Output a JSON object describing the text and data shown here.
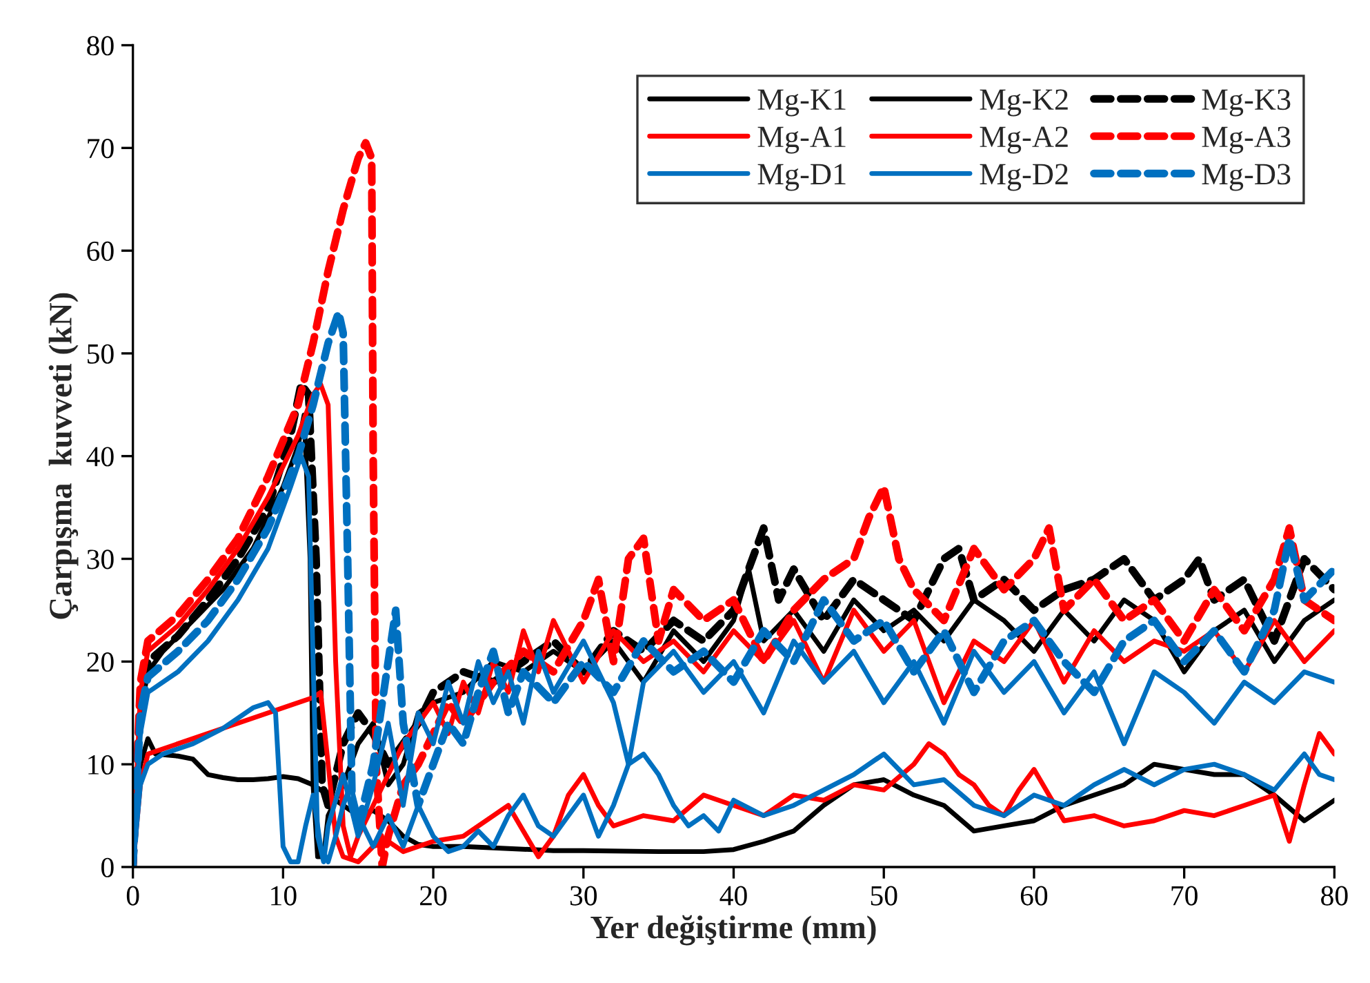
{
  "chart_data": {
    "type": "line",
    "xlabel": "Yer değiştirme (mm)",
    "ylabel": "Çarpışma  kuvveti (kN)",
    "xlim": [
      0,
      80
    ],
    "xticks": [
      0,
      10,
      20,
      30,
      40,
      50,
      60,
      70,
      80
    ],
    "ylim": [
      0,
      80
    ],
    "yticks": [
      0,
      10,
      20,
      30,
      40,
      50,
      60,
      70,
      80
    ],
    "grid": false,
    "legend": "top right",
    "series": [
      {
        "name": "Mg-K1",
        "color": "#000000",
        "line_style": "solid",
        "x": [
          0,
          0.5,
          1,
          1.5,
          3,
          4,
          5,
          6,
          7,
          8,
          9,
          10,
          11,
          12,
          13,
          14,
          15,
          16,
          17,
          18,
          19,
          20,
          22,
          25,
          28,
          30,
          35,
          38,
          40,
          42,
          44,
          46,
          48,
          50,
          52,
          54,
          56,
          58,
          60,
          62,
          64,
          66,
          68,
          70,
          72,
          74,
          76,
          78,
          80
        ],
        "values": [
          0,
          10,
          12.5,
          11,
          10.8,
          10.5,
          9,
          8.7,
          8.5,
          8.5,
          8.6,
          8.8,
          8.6,
          8,
          7,
          6,
          5,
          5.5,
          4.5,
          3,
          2.2,
          2,
          2,
          1.8,
          1.6,
          1.6,
          1.5,
          1.5,
          1.7,
          2.5,
          3.5,
          6,
          8,
          8.5,
          7,
          6,
          3.5,
          4,
          4.5,
          6,
          7,
          8,
          10,
          9.5,
          9,
          9,
          7,
          4.5,
          6.5
        ]
      },
      {
        "name": "Mg-K2",
        "color": "#000000",
        "line_style": "solid",
        "x": [
          0,
          0.5,
          1,
          2,
          4,
          6,
          8,
          10,
          11,
          11.4,
          11.8,
          12,
          12.3,
          12.7,
          13,
          14,
          15,
          16,
          17,
          18,
          19,
          20,
          22,
          24,
          26,
          28,
          30,
          32,
          34,
          36,
          38,
          40,
          41,
          42,
          44,
          46,
          48,
          50,
          52,
          54,
          56,
          58,
          60,
          62,
          64,
          66,
          68,
          70,
          72,
          74,
          76,
          78,
          80
        ],
        "values": [
          0,
          15,
          19,
          21,
          24,
          27,
          31,
          37,
          41,
          44,
          30,
          8,
          1,
          1,
          5,
          8,
          12,
          14,
          8,
          10,
          15,
          16,
          17,
          20,
          19,
          21,
          19,
          22,
          18,
          23,
          20,
          24,
          29,
          22,
          25,
          21,
          26,
          23,
          25,
          22,
          26,
          24,
          21,
          25,
          22,
          26,
          24,
          19,
          23,
          25,
          20,
          24,
          26
        ]
      },
      {
        "name": "Mg-K3",
        "color": "#000000",
        "line_style": "dashed",
        "x": [
          0,
          0.5,
          1,
          3,
          5,
          7,
          9,
          10.5,
          11.2,
          11.7,
          12.2,
          12.6,
          13,
          14,
          15,
          16,
          17,
          18,
          19,
          20,
          22,
          24,
          26,
          28,
          30,
          32,
          34,
          36,
          38,
          40,
          42,
          43,
          44,
          46,
          48,
          50,
          52,
          54,
          55,
          56,
          58,
          60,
          62,
          64,
          66,
          68,
          70,
          71,
          72,
          74,
          76,
          78,
          80
        ],
        "values": [
          0,
          16,
          20,
          22.5,
          26,
          30,
          35,
          42,
          47,
          46,
          30,
          8,
          6,
          12,
          15,
          13,
          10,
          12,
          14,
          17,
          19,
          18,
          20,
          22,
          19,
          23,
          21,
          24,
          22,
          25,
          33,
          26,
          29,
          24,
          28,
          26,
          24,
          30,
          31,
          26,
          28,
          25,
          27,
          28,
          30,
          26,
          28,
          30,
          26,
          28,
          22,
          30,
          27
        ]
      },
      {
        "name": "Mg-A1",
        "color": "#ff0000",
        "line_style": "solid",
        "x": [
          0,
          0.5,
          1,
          3,
          6,
          9,
          12,
          12.5,
          13,
          13.5,
          14,
          15,
          16,
          17,
          18,
          20,
          22,
          24,
          25,
          26,
          27,
          28,
          29,
          30,
          31,
          32,
          34,
          36,
          38,
          40,
          42,
          44,
          46,
          48,
          50,
          52,
          53,
          54,
          55,
          56,
          57,
          58,
          59,
          60,
          61,
          62,
          64,
          66,
          68,
          70,
          72,
          74,
          76,
          77,
          78,
          79,
          80
        ],
        "values": [
          0,
          8,
          11,
          12,
          13.5,
          15,
          16.5,
          17,
          10,
          3,
          1,
          0.5,
          2,
          2.5,
          1.5,
          2.5,
          3,
          5,
          6,
          3.5,
          1,
          3,
          7,
          9,
          6,
          4,
          5,
          4.5,
          7,
          6,
          5,
          7,
          6.5,
          8,
          7.5,
          10,
          12,
          11,
          9,
          8,
          6,
          5,
          7.5,
          9.5,
          7,
          4.5,
          5,
          4,
          4.5,
          5.5,
          5,
          6,
          7,
          2.5,
          8,
          13,
          11
        ]
      },
      {
        "name": "Mg-A2",
        "color": "#ff0000",
        "line_style": "solid",
        "x": [
          0,
          0.5,
          1,
          3,
          5,
          7,
          9,
          11,
          12,
          12.5,
          13,
          13.5,
          14,
          14.5,
          15,
          16,
          17,
          18,
          19,
          20,
          21,
          22,
          23,
          24,
          25,
          26,
          27,
          28,
          29,
          30,
          32,
          34,
          36,
          38,
          40,
          42,
          44,
          46,
          48,
          50,
          52,
          54,
          56,
          58,
          60,
          62,
          64,
          66,
          68,
          70,
          72,
          74,
          76,
          78,
          80
        ],
        "values": [
          0,
          17,
          21,
          23.5,
          27,
          31,
          36,
          42,
          46,
          47,
          45,
          20,
          4,
          1,
          3,
          6,
          9,
          12,
          14,
          16,
          13,
          18,
          15,
          20,
          17,
          23,
          19,
          24,
          21,
          18,
          23,
          20,
          22,
          19,
          23,
          20,
          24,
          18,
          25,
          21,
          24,
          16,
          22,
          20,
          24,
          18,
          23,
          20,
          22,
          21,
          23,
          19,
          24,
          20,
          23
        ]
      },
      {
        "name": "Mg-A3",
        "color": "#ff0000",
        "line_style": "dashed",
        "x": [
          0,
          0.5,
          1,
          3,
          5,
          7,
          9,
          11,
          12,
          13,
          14,
          15,
          15.5,
          15.9,
          16,
          16.2,
          16.6,
          17,
          18,
          19,
          20,
          21,
          22,
          24,
          26,
          28,
          30,
          31,
          32,
          33,
          34,
          35,
          36,
          38,
          40,
          42,
          44,
          46,
          48,
          49,
          50,
          51,
          52,
          54,
          56,
          58,
          60,
          61,
          62,
          64,
          66,
          68,
          70,
          72,
          74,
          76,
          77,
          78,
          80
        ],
        "values": [
          0,
          18,
          22,
          24.5,
          28,
          32,
          38,
          45,
          51,
          58,
          64,
          69,
          70.5,
          69,
          40,
          10,
          0,
          3,
          8,
          10,
          13,
          16,
          14,
          18,
          21,
          19,
          24,
          28,
          20,
          30,
          32,
          22,
          27,
          24,
          26,
          20,
          25,
          28,
          30,
          34,
          37,
          30,
          27,
          24,
          31,
          27,
          30,
          33,
          25,
          28,
          24,
          26,
          22,
          27,
          23,
          28,
          33,
          26,
          24
        ]
      },
      {
        "name": "Mg-D1",
        "color": "#0070c0",
        "line_style": "solid",
        "x": [
          0,
          0.5,
          1,
          2,
          4,
          6,
          8,
          9,
          9.5,
          10,
          10.5,
          11,
          11.5,
          12,
          12.5,
          13,
          13.5,
          14,
          14.5,
          15,
          16,
          17,
          18,
          19,
          20,
          21,
          22,
          23,
          24,
          25,
          26,
          27,
          28,
          29,
          30,
          31,
          32,
          33,
          34,
          35,
          36,
          37,
          38,
          39,
          40,
          42,
          44,
          46,
          48,
          50,
          52,
          54,
          56,
          58,
          60,
          62,
          64,
          66,
          68,
          70,
          72,
          74,
          76,
          78,
          79,
          80
        ],
        "values": [
          0,
          8,
          10,
          11,
          12,
          13.5,
          15.5,
          16,
          15,
          2,
          0.5,
          0.5,
          4,
          7,
          2,
          0.5,
          3,
          6,
          8,
          5,
          2,
          5,
          2,
          6,
          3,
          1.5,
          2,
          3.5,
          2,
          5,
          7,
          4,
          3,
          5,
          7,
          3,
          6,
          10,
          11,
          9,
          6,
          4,
          5,
          3.5,
          6.5,
          5,
          6,
          7.5,
          9,
          11,
          8,
          8.5,
          6,
          5,
          7,
          6,
          8,
          9.5,
          8,
          9.5,
          10,
          9,
          7.5,
          11,
          9,
          8.5
        ]
      },
      {
        "name": "Mg-D2",
        "color": "#0070c0",
        "line_style": "solid",
        "x": [
          0,
          0.5,
          1,
          3,
          5,
          7,
          9,
          10.5,
          11.2,
          11.7,
          12,
          12.3,
          12.7,
          13,
          14,
          15,
          16,
          17,
          18,
          19,
          20,
          21,
          22,
          23,
          24,
          25,
          26,
          27,
          28,
          30,
          32,
          33,
          34,
          36,
          38,
          40,
          42,
          44,
          46,
          48,
          50,
          52,
          54,
          56,
          58,
          60,
          62,
          64,
          66,
          68,
          70,
          72,
          74,
          76,
          78,
          80
        ],
        "values": [
          0,
          13,
          17,
          19,
          22,
          26,
          31,
          37,
          40,
          38,
          20,
          3,
          0.5,
          4,
          9,
          3,
          8,
          14,
          6,
          15,
          12,
          18,
          14,
          20,
          16,
          19,
          14,
          21,
          17,
          22,
          16,
          10,
          18,
          21,
          17,
          20,
          15,
          22,
          18,
          21,
          16,
          20,
          14,
          21,
          17,
          20,
          15,
          19,
          12,
          19,
          17,
          14,
          18,
          16,
          19,
          18
        ]
      },
      {
        "name": "Mg-D3",
        "color": "#0070c0",
        "line_style": "dashed",
        "x": [
          0,
          0.5,
          1,
          3,
          5,
          7,
          9,
          11,
          12,
          13,
          13.7,
          14,
          14.3,
          14.6,
          15,
          16,
          17,
          17.5,
          18,
          19,
          20,
          21,
          22,
          23,
          24,
          25,
          26,
          28,
          30,
          32,
          34,
          36,
          38,
          40,
          42,
          44,
          46,
          48,
          50,
          52,
          54,
          56,
          58,
          60,
          62,
          64,
          66,
          68,
          70,
          72,
          74,
          76,
          77,
          78,
          80
        ],
        "values": [
          0,
          15,
          18.5,
          21,
          24,
          28,
          33,
          40,
          45,
          51,
          54,
          52,
          30,
          6,
          4,
          10,
          20,
          25,
          14,
          6,
          10,
          14,
          12,
          17,
          21,
          15,
          19,
          16,
          20,
          17,
          22,
          19,
          21,
          18,
          23,
          20,
          26,
          22,
          24,
          19,
          23,
          17,
          22,
          24,
          20,
          17,
          22,
          24,
          20,
          23,
          19,
          25,
          32,
          26,
          29
        ]
      }
    ]
  }
}
